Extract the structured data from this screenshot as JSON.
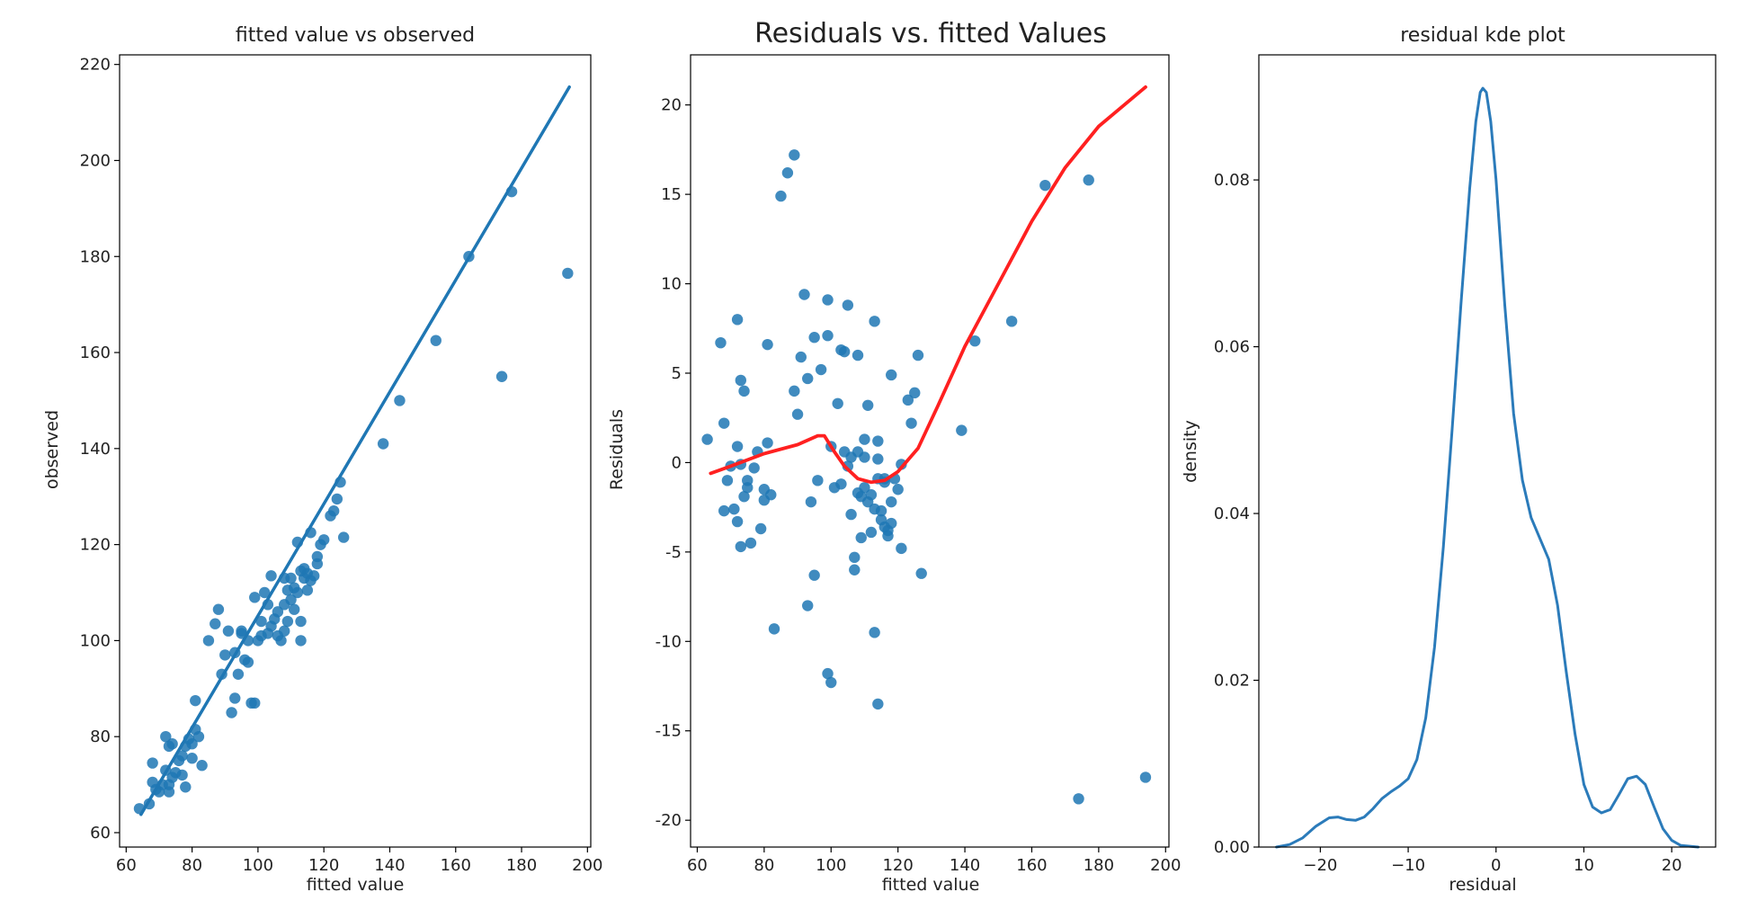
{
  "chart_data": [
    {
      "type": "scatter",
      "title": "fitted value vs observed",
      "xlabel": "fitted value",
      "ylabel": "observed",
      "xlim": [
        58,
        201
      ],
      "ylim": [
        57,
        222
      ],
      "xticks": [
        60,
        80,
        100,
        120,
        140,
        160,
        180,
        200
      ],
      "yticks": [
        60,
        80,
        100,
        120,
        140,
        160,
        180,
        200,
        220
      ],
      "point_color": "#1f77b4",
      "regression_line": {
        "x": [
          64.5,
          194.5
        ],
        "y": [
          63.8,
          215.3
        ],
        "color": "#1f77b4"
      },
      "points": [
        [
          64,
          65
        ],
        [
          67,
          66
        ],
        [
          68,
          70.5
        ],
        [
          68,
          74.5
        ],
        [
          69,
          69
        ],
        [
          70,
          68.5
        ],
        [
          71,
          70
        ],
        [
          72,
          73
        ],
        [
          72,
          80
        ],
        [
          73,
          68.5
        ],
        [
          73,
          70
        ],
        [
          73,
          78
        ],
        [
          74,
          71.5
        ],
        [
          74,
          78.5
        ],
        [
          75,
          72.5
        ],
        [
          76,
          75
        ],
        [
          77,
          76
        ],
        [
          77,
          72
        ],
        [
          78,
          78
        ],
        [
          78,
          69.5
        ],
        [
          79,
          79.5
        ],
        [
          80,
          75.5
        ],
        [
          80,
          78.5
        ],
        [
          81,
          81.5
        ],
        [
          81,
          87.5
        ],
        [
          82,
          80
        ],
        [
          83,
          74
        ],
        [
          85,
          100
        ],
        [
          87,
          103.5
        ],
        [
          88,
          106.5
        ],
        [
          89,
          93
        ],
        [
          90,
          97
        ],
        [
          91,
          102
        ],
        [
          92,
          85
        ],
        [
          93,
          97.5
        ],
        [
          93,
          88
        ],
        [
          94,
          93
        ],
        [
          95,
          102
        ],
        [
          95,
          101.5
        ],
        [
          96,
          96
        ],
        [
          97,
          100
        ],
        [
          97,
          95.5
        ],
        [
          98,
          87
        ],
        [
          99,
          87
        ],
        [
          99,
          109
        ],
        [
          100,
          100
        ],
        [
          101,
          101
        ],
        [
          101,
          104
        ],
        [
          102,
          110
        ],
        [
          103,
          101.5
        ],
        [
          103,
          107.5
        ],
        [
          104,
          113.5
        ],
        [
          104,
          103
        ],
        [
          105,
          104.5
        ],
        [
          106,
          106
        ],
        [
          106,
          101
        ],
        [
          107,
          100
        ],
        [
          108,
          113
        ],
        [
          108,
          107.5
        ],
        [
          108,
          102
        ],
        [
          109,
          110.5
        ],
        [
          109,
          104
        ],
        [
          110,
          108.5
        ],
        [
          110,
          113
        ],
        [
          111,
          111
        ],
        [
          111,
          106.5
        ],
        [
          112,
          120.5
        ],
        [
          112,
          110
        ],
        [
          113,
          104
        ],
        [
          113,
          100
        ],
        [
          113,
          114.5
        ],
        [
          114,
          113
        ],
        [
          114,
          115
        ],
        [
          115,
          110.5
        ],
        [
          115,
          114
        ],
        [
          116,
          112.5
        ],
        [
          116,
          122.5
        ],
        [
          117,
          113.5
        ],
        [
          118,
          116
        ],
        [
          118,
          117.5
        ],
        [
          119,
          120
        ],
        [
          120,
          121
        ],
        [
          122,
          126
        ],
        [
          123,
          127
        ],
        [
          124,
          129.5
        ],
        [
          125,
          133
        ],
        [
          126,
          121.5
        ],
        [
          138,
          141
        ],
        [
          143,
          150
        ],
        [
          154,
          162.5
        ],
        [
          164,
          180
        ],
        [
          174,
          155
        ],
        [
          177,
          193.5
        ],
        [
          194,
          176.5
        ]
      ]
    },
    {
      "type": "scatter",
      "title": "Residuals vs. fitted Values",
      "xlabel": "fitted value",
      "ylabel": "Residuals",
      "xlim": [
        58,
        201
      ],
      "ylim": [
        -21.5,
        22.8
      ],
      "xticks": [
        60,
        80,
        100,
        120,
        140,
        160,
        180,
        200
      ],
      "yticks": [
        -20,
        -15,
        -10,
        -5,
        0,
        5,
        10,
        15,
        20
      ],
      "point_color": "#1f77b4",
      "lowess_line": {
        "color": "#ff2020",
        "points": [
          [
            64,
            -0.6
          ],
          [
            70,
            -0.2
          ],
          [
            80,
            0.5
          ],
          [
            90,
            1
          ],
          [
            96,
            1.5
          ],
          [
            98,
            1.5
          ],
          [
            101,
            0.6
          ],
          [
            104,
            -0.2
          ],
          [
            108,
            -0.9
          ],
          [
            112,
            -1.1
          ],
          [
            116,
            -1
          ],
          [
            120,
            -0.5
          ],
          [
            126,
            0.8
          ],
          [
            132,
            3.2
          ],
          [
            140,
            6.5
          ],
          [
            150,
            10
          ],
          [
            160,
            13.5
          ],
          [
            170,
            16.5
          ],
          [
            180,
            18.8
          ],
          [
            194,
            21
          ]
        ]
      },
      "points": [
        [
          63,
          1.3
        ],
        [
          67,
          6.7
        ],
        [
          68,
          2.2
        ],
        [
          68,
          -2.7
        ],
        [
          69,
          -1
        ],
        [
          70,
          -0.2
        ],
        [
          71,
          -2.6
        ],
        [
          72,
          8
        ],
        [
          72,
          0.9
        ],
        [
          72,
          -3.3
        ],
        [
          73,
          -4.7
        ],
        [
          73,
          4.6
        ],
        [
          73,
          -0.1
        ],
        [
          74,
          4
        ],
        [
          74,
          -1.9
        ],
        [
          75,
          -1
        ],
        [
          75,
          -1.4
        ],
        [
          76,
          -4.5
        ],
        [
          77,
          -0.3
        ],
        [
          78,
          0.6
        ],
        [
          79,
          -3.7
        ],
        [
          80,
          -1.5
        ],
        [
          80,
          -2.1
        ],
        [
          81,
          6.6
        ],
        [
          81,
          1.1
        ],
        [
          82,
          -1.8
        ],
        [
          83,
          -9.3
        ],
        [
          85,
          14.9
        ],
        [
          87,
          16.2
        ],
        [
          89,
          17.2
        ],
        [
          89,
          4
        ],
        [
          90,
          2.7
        ],
        [
          91,
          5.9
        ],
        [
          92,
          9.4
        ],
        [
          93,
          4.7
        ],
        [
          93,
          -8
        ],
        [
          94,
          -2.2
        ],
        [
          95,
          -6.3
        ],
        [
          95,
          7
        ],
        [
          96,
          -1
        ],
        [
          97,
          5.2
        ],
        [
          99,
          9.1
        ],
        [
          99,
          7.1
        ],
        [
          99,
          -11.8
        ],
        [
          100,
          -12.3
        ],
        [
          100,
          0.9
        ],
        [
          101,
          -1.4
        ],
        [
          102,
          3.3
        ],
        [
          103,
          6.3
        ],
        [
          103,
          -1.2
        ],
        [
          104,
          0.6
        ],
        [
          104,
          6.2
        ],
        [
          105,
          8.8
        ],
        [
          105,
          -0.2
        ],
        [
          106,
          -2.9
        ],
        [
          106,
          0.3
        ],
        [
          107,
          -5.3
        ],
        [
          107,
          -6
        ],
        [
          108,
          6
        ],
        [
          108,
          0.6
        ],
        [
          108,
          -1.7
        ],
        [
          109,
          -4.2
        ],
        [
          109,
          -1.9
        ],
        [
          110,
          0.3
        ],
        [
          110,
          -1.4
        ],
        [
          110,
          1.3
        ],
        [
          111,
          3.2
        ],
        [
          111,
          -2.2
        ],
        [
          112,
          -3.9
        ],
        [
          112,
          -1.8
        ],
        [
          113,
          7.9
        ],
        [
          113,
          -2.6
        ],
        [
          113,
          -9.5
        ],
        [
          114,
          -13.5
        ],
        [
          114,
          -0.9
        ],
        [
          114,
          0.2
        ],
        [
          114,
          1.2
        ],
        [
          115,
          -3.2
        ],
        [
          115,
          -2.7
        ],
        [
          116,
          -1.1
        ],
        [
          116,
          -0.9
        ],
        [
          116,
          -3.6
        ],
        [
          117,
          -4.1
        ],
        [
          117,
          -3.8
        ],
        [
          118,
          4.9
        ],
        [
          118,
          -2.2
        ],
        [
          118,
          -3.4
        ],
        [
          119,
          -0.9
        ],
        [
          120,
          -1.5
        ],
        [
          121,
          -4.8
        ],
        [
          121,
          -0.1
        ],
        [
          123,
          3.5
        ],
        [
          124,
          2.2
        ],
        [
          125,
          3.9
        ],
        [
          126,
          6
        ],
        [
          127,
          -6.2
        ],
        [
          139,
          1.8
        ],
        [
          143,
          6.8
        ],
        [
          154,
          7.9
        ],
        [
          164,
          15.5
        ],
        [
          174,
          -18.8
        ],
        [
          177,
          15.8
        ],
        [
          194,
          -17.6
        ]
      ]
    },
    {
      "type": "line",
      "title": "residual kde plot",
      "xlabel": "residual",
      "ylabel": "density",
      "xlim": [
        -27,
        25
      ],
      "ylim": [
        0,
        0.095
      ],
      "xticks": [
        -20,
        -10,
        0,
        10,
        20
      ],
      "xtick_labels": [
        "−20",
        "−10",
        "0",
        "10",
        "20"
      ],
      "yticks": [
        0,
        0.02,
        0.04,
        0.06,
        0.08
      ],
      "ytick_labels": [
        "0.00",
        "0.02",
        "0.04",
        "0.06",
        "0.08"
      ],
      "line_color": "#2b7bba",
      "points": [
        [
          -25,
          0
        ],
        [
          -23.5,
          0.0003
        ],
        [
          -22,
          0.0011
        ],
        [
          -20.5,
          0.0025
        ],
        [
          -19,
          0.0035
        ],
        [
          -18,
          0.0036
        ],
        [
          -17,
          0.0033
        ],
        [
          -16,
          0.0032
        ],
        [
          -15,
          0.0036
        ],
        [
          -14,
          0.0046
        ],
        [
          -13,
          0.0058
        ],
        [
          -12,
          0.0066
        ],
        [
          -11,
          0.0073
        ],
        [
          -10,
          0.0082
        ],
        [
          -9,
          0.0105
        ],
        [
          -8,
          0.0155
        ],
        [
          -7,
          0.024
        ],
        [
          -6,
          0.036
        ],
        [
          -5,
          0.05
        ],
        [
          -4,
          0.065
        ],
        [
          -3,
          0.079
        ],
        [
          -2.3,
          0.087
        ],
        [
          -1.8,
          0.0905
        ],
        [
          -1.5,
          0.091
        ],
        [
          -1.1,
          0.0905
        ],
        [
          -0.6,
          0.087
        ],
        [
          0,
          0.08
        ],
        [
          1,
          0.065
        ],
        [
          2,
          0.052
        ],
        [
          3,
          0.044
        ],
        [
          4,
          0.0395
        ],
        [
          5,
          0.037
        ],
        [
          6,
          0.0345
        ],
        [
          7,
          0.029
        ],
        [
          8,
          0.021
        ],
        [
          9,
          0.0135
        ],
        [
          10,
          0.0075
        ],
        [
          11,
          0.0048
        ],
        [
          12,
          0.0041
        ],
        [
          13,
          0.0045
        ],
        [
          14,
          0.0063
        ],
        [
          15,
          0.0082
        ],
        [
          16,
          0.0085
        ],
        [
          17,
          0.0075
        ],
        [
          18,
          0.0048
        ],
        [
          19,
          0.0022
        ],
        [
          20,
          0.0008
        ],
        [
          21,
          0.0002
        ],
        [
          23,
          0
        ]
      ]
    }
  ]
}
